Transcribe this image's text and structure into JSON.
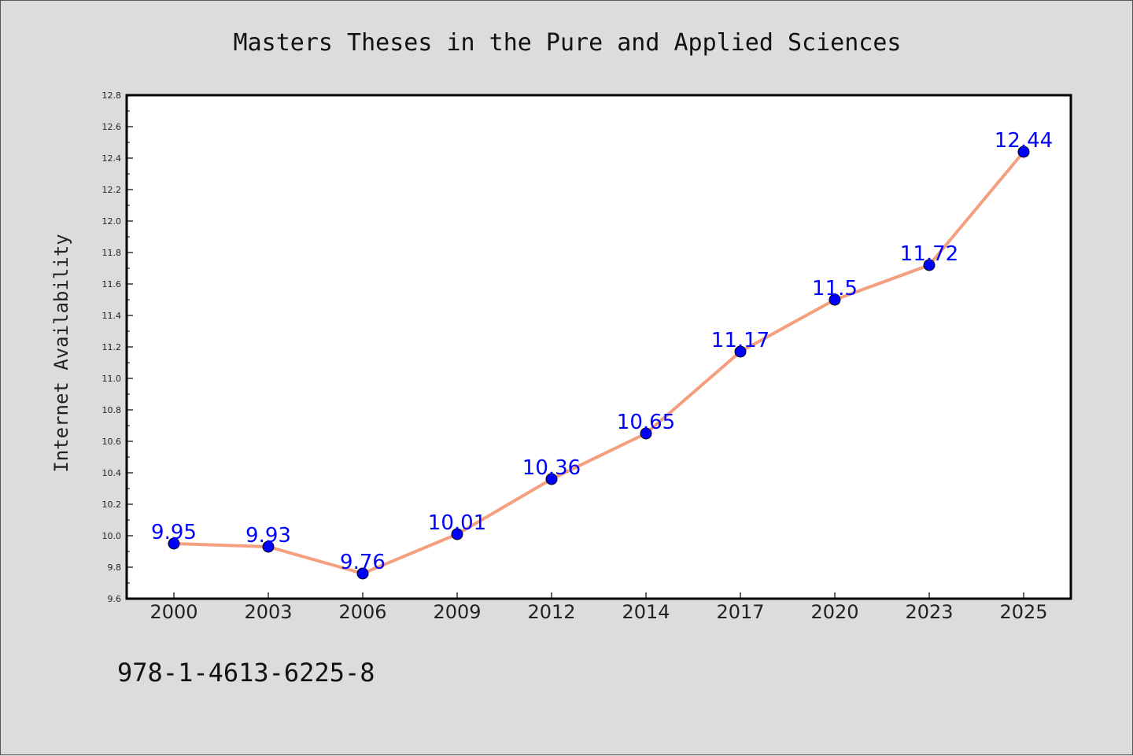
{
  "chart_data": {
    "type": "line",
    "title": "Masters Theses in the Pure and Applied Sciences",
    "xlabel": "",
    "ylabel": "Internet Availability",
    "categories": [
      "2000",
      "2003",
      "2006",
      "2009",
      "2012",
      "2014",
      "2017",
      "2020",
      "2023",
      "2025"
    ],
    "series": [
      {
        "values": [
          9.95,
          9.93,
          9.76,
          10.01,
          10.36,
          10.65,
          11.17,
          11.5,
          11.72,
          12.44
        ],
        "data_labels": [
          "9.95",
          "9.93",
          "9.76",
          "10.01",
          "10.36",
          "10.65",
          "11.17",
          "11.5",
          "11.72",
          "12.44"
        ],
        "line_color": "#f4a07f",
        "marker_color": "#0000ff"
      }
    ],
    "ylim": [
      9.6,
      12.8
    ],
    "yticks": [
      "9.6",
      "9.8",
      "10.0",
      "10.2",
      "10.4",
      "10.6",
      "10.8",
      "11.0",
      "11.2",
      "11.4",
      "11.6",
      "11.8",
      "12.0",
      "12.2",
      "12.4",
      "12.6",
      "12.8"
    ],
    "grid": false,
    "legend": "none"
  },
  "footnote": "978-1-4613-6225-8",
  "colors": {
    "background": "#dcdcdc",
    "plot_background": "#ffffff",
    "data_label": "#0000ff"
  }
}
